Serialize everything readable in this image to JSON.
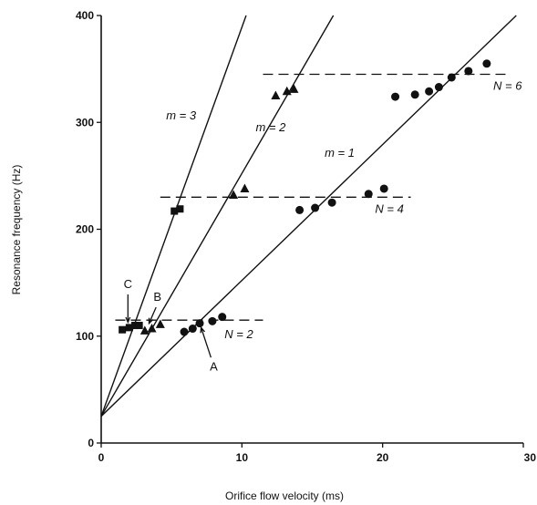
{
  "chart_data": {
    "type": "scatter",
    "title": "",
    "xlabel": "Orifice flow velocity (ms)",
    "ylabel": "Resonance frequency (Hz)",
    "xlim": [
      0,
      30
    ],
    "ylim": [
      0,
      400
    ],
    "x_ticks": [
      "0",
      "10",
      "20",
      "30"
    ],
    "y_ticks": [
      "0",
      "100",
      "200",
      "300",
      "400"
    ],
    "grid": false,
    "lines": [
      {
        "label": "m = 3",
        "x": [
          0,
          10.3
        ],
        "y": [
          25,
          400
        ]
      },
      {
        "label": "m = 2",
        "x": [
          0,
          16.5
        ],
        "y": [
          25,
          400
        ]
      },
      {
        "label": "m = 1",
        "x": [
          0,
          29.5
        ],
        "y": [
          25,
          400
        ]
      }
    ],
    "levels": [
      {
        "label": "N = 2",
        "y": 115,
        "x": [
          1.0,
          11.5
        ]
      },
      {
        "label": "N = 4",
        "y": 230,
        "x": [
          4.2,
          22.0
        ]
      },
      {
        "label": "N = 6",
        "y": 345,
        "x": [
          11.5,
          29.0
        ]
      }
    ],
    "series": [
      {
        "marker": "square",
        "x": [
          1.5,
          2.0,
          2.4,
          2.7,
          5.2,
          5.6
        ],
        "y": [
          106,
          108,
          110,
          110,
          217,
          219
        ]
      },
      {
        "marker": "triangle",
        "x": [
          3.1,
          3.6,
          4.2,
          9.4,
          10.2,
          12.4,
          13.2,
          13.7
        ],
        "y": [
          105,
          107,
          111,
          232,
          238,
          325,
          329,
          331
        ]
      },
      {
        "marker": "circle",
        "x": [
          5.9,
          6.5,
          7.0,
          7.9,
          8.6,
          14.1,
          15.2,
          16.4,
          19.0,
          20.1,
          20.9,
          22.3,
          23.3,
          24.0,
          24.9,
          26.1,
          27.4
        ],
        "y": [
          104,
          107,
          112,
          114,
          118,
          218,
          220,
          225,
          233,
          238,
          324,
          326,
          329,
          333,
          342,
          348,
          355
        ]
      }
    ],
    "point_labels": [
      {
        "text": "A",
        "x": 7.0,
        "y": 112
      },
      {
        "text": "B",
        "x": 3.6,
        "y": 107
      },
      {
        "text": "C",
        "x": 2.0,
        "y": 108
      }
    ]
  }
}
